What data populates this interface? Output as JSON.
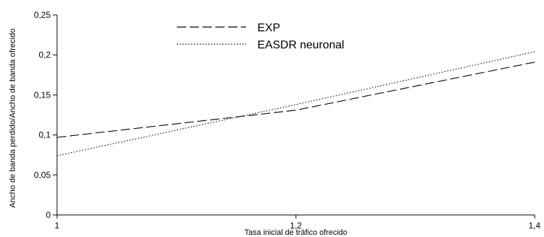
{
  "chart_data": {
    "type": "line",
    "title": "",
    "xlabel": "Tasa inicial de tráfico ofrecido",
    "ylabel": "Ancho de banda perdido/Ancho de banda ofrecido",
    "xlim": [
      1,
      1.4
    ],
    "ylim": [
      0,
      0.25
    ],
    "x_ticks": [
      1,
      1.2,
      1.4
    ],
    "x_tick_labels": [
      "1",
      "1,2",
      "1,4"
    ],
    "y_ticks": [
      0,
      0.05,
      0.1,
      0.15,
      0.2,
      0.25
    ],
    "y_tick_labels": [
      "0",
      "0,05",
      "0,1",
      "0,15",
      "0,2",
      "0,25"
    ],
    "grid": false,
    "legend_position": "top-center",
    "series": [
      {
        "name": "EXP",
        "style": "dashed",
        "color": "#000000",
        "x": [
          1,
          1.2,
          1.4
        ],
        "y": [
          0.097,
          0.131,
          0.191
        ]
      },
      {
        "name": "EASDR neuronal",
        "style": "dotted",
        "color": "#000000",
        "x": [
          1,
          1.2,
          1.4
        ],
        "y": [
          0.074,
          0.138,
          0.204
        ]
      }
    ]
  }
}
